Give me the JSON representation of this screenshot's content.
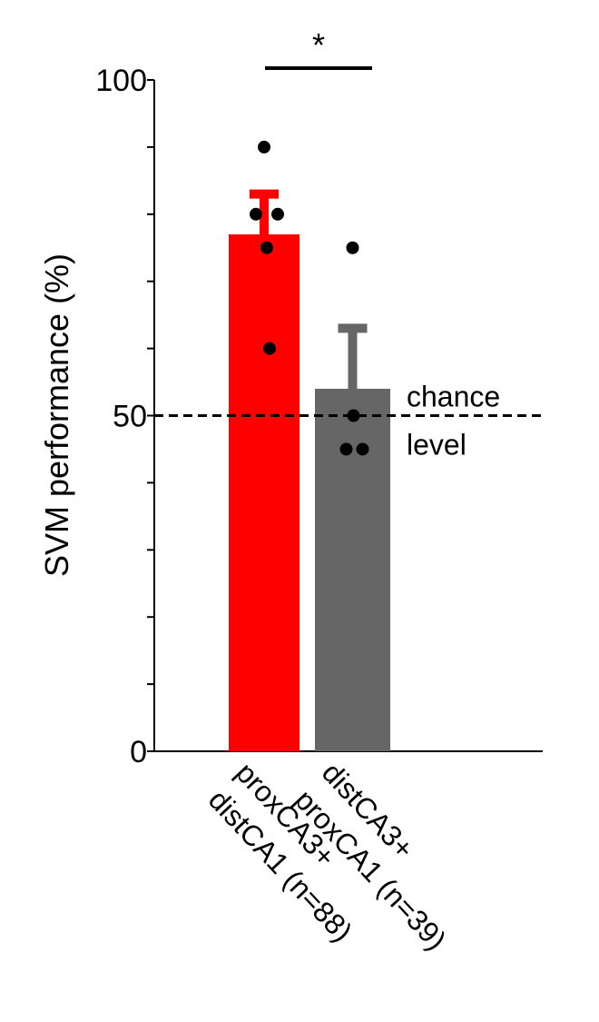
{
  "chart_data": {
    "type": "bar",
    "ylabel": "SVM performance (%)",
    "categories": [
      [
        "proxCA3+",
        "distCA1 (n=88)"
      ],
      [
        "distCA3+",
        "proxCA1 (n=39)"
      ]
    ],
    "values": [
      77,
      54
    ],
    "errors": [
      6,
      9
    ],
    "colors": [
      "#ff0000",
      "#666666"
    ],
    "points": [
      [
        90,
        80,
        80,
        75,
        60
      ],
      [
        75,
        50,
        45,
        45
      ]
    ],
    "ylim": [
      0,
      100
    ],
    "yticks": [
      0,
      50,
      100
    ],
    "minor_yticks": [
      10,
      20,
      30,
      40,
      60,
      70,
      80,
      90
    ],
    "reference_line": {
      "value": 50,
      "label": [
        "chance",
        "level"
      ]
    },
    "significance": "*"
  }
}
